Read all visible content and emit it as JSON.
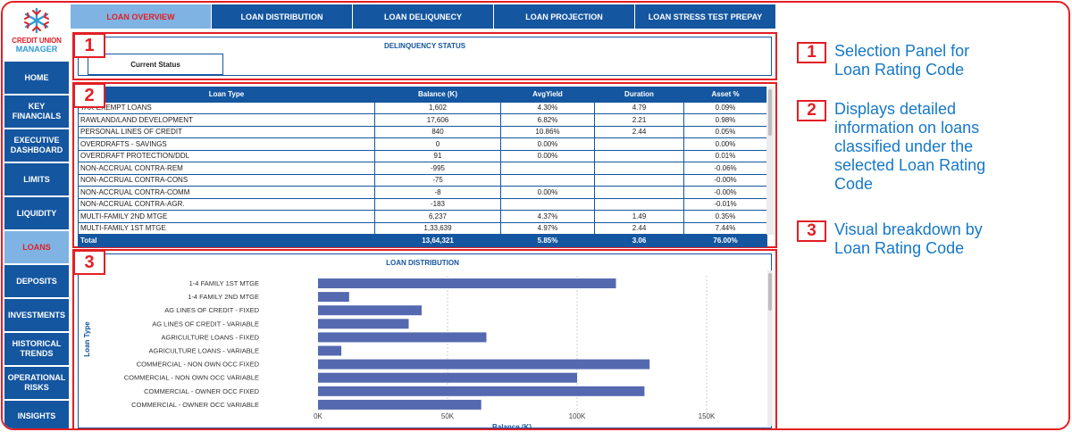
{
  "brand": {
    "line1": "CREDIT UNION",
    "line2": "MANAGER"
  },
  "sidebar": {
    "items": [
      {
        "label": "HOME",
        "active": false
      },
      {
        "label": "KEY FINANCIALS",
        "active": false
      },
      {
        "label": "EXECUTIVE DASHBOARD",
        "active": false
      },
      {
        "label": "LIMITS",
        "active": false
      },
      {
        "label": "LIQUIDITY",
        "active": false
      },
      {
        "label": "LOANS",
        "active": true
      },
      {
        "label": "DEPOSITS",
        "active": false
      },
      {
        "label": "INVESTMENTS",
        "active": false
      },
      {
        "label": "HISTORICAL TRENDS",
        "active": false
      },
      {
        "label": "OPERATIONAL RISKS",
        "active": false
      },
      {
        "label": "INSIGHTS",
        "active": false
      }
    ]
  },
  "tabs": [
    {
      "label": "LOAN OVERVIEW",
      "active": true
    },
    {
      "label": "LOAN DISTRIBUTION",
      "active": false
    },
    {
      "label": "LOAN DELIQUNECY",
      "active": false
    },
    {
      "label": "LOAN PROJECTION",
      "active": false
    },
    {
      "label": "LOAN STRESS TEST PREPAY",
      "active": false
    }
  ],
  "panel1": {
    "badge": "1",
    "title": "DELINQUENCY STATUS",
    "status_label": "Current Status"
  },
  "panel2": {
    "badge": "2",
    "columns": [
      "Loan Type",
      "Balance (K)",
      "AvgYield",
      "Duration",
      "Asset %"
    ],
    "rows": [
      [
        "TAX-EXEMPT LOANS",
        "1,602",
        "4.30%",
        "4.79",
        "0.09%"
      ],
      [
        "RAWLAND/LAND DEVELOPMENT",
        "17,606",
        "6.82%",
        "2.21",
        "0.98%"
      ],
      [
        "PERSONAL LINES OF CREDIT",
        "840",
        "10.86%",
        "2.44",
        "0.05%"
      ],
      [
        "OVERDRAFTS - SAVINGS",
        "0",
        "0.00%",
        "",
        "0.00%"
      ],
      [
        "OVERDRAFT PROTECTION/DDL",
        "91",
        "0.00%",
        "",
        "0.01%"
      ],
      [
        "NON-ACCRUAL CONTRA-REM",
        "-995",
        "",
        "",
        "-0.06%"
      ],
      [
        "NON-ACCRUAL CONTRA-CONS",
        "-75",
        "",
        "",
        "-0.00%"
      ],
      [
        "NON-ACCRUAL CONTRA-COMM",
        "-8",
        "0.00%",
        "",
        "-0.00%"
      ],
      [
        "NON-ACCRUAL CONTRA-AGR.",
        "-183",
        "",
        "",
        "-0.01%"
      ],
      [
        "MULTI-FAMILY 2ND MTGE",
        "6,237",
        "4.37%",
        "1.49",
        "0.35%"
      ],
      [
        "MULTI-FAMILY 1ST MTGE",
        "1,33,639",
        "4.97%",
        "2.44",
        "7.44%"
      ]
    ],
    "total": [
      "Total",
      "13,64,321",
      "5.85%",
      "3.06",
      "76.00%"
    ]
  },
  "panel3": {
    "badge": "3",
    "chart_data": {
      "type": "bar",
      "orientation": "horizontal",
      "title": "LOAN DISTRIBUTION",
      "xlabel": "Balance (K)",
      "ylabel": "Loan Type",
      "categories": [
        "1-4 FAMILY 1ST MTGE",
        "1-4 FAMILY 2ND MTGE",
        "AG LINES OF CREDIT - FIXED",
        "AG LINES OF CREDIT - VARIABLE",
        "AGRICULTURE LOANS - FIXED",
        "AGRICULTURE LOANS - VARIABLE",
        "COMMERCIAL - NON OWN OCC FIXED",
        "COMMERCIAL - NON OWN OCC VARIABLE",
        "COMMERCIAL - OWNER OCC FIXED",
        "COMMERCIAL - OWNER OCC VARIABLE"
      ],
      "values": [
        115000,
        12000,
        40000,
        35000,
        65000,
        9000,
        128000,
        100000,
        126000,
        63000
      ],
      "xlim": [
        0,
        160000
      ],
      "xticks": [
        0,
        50000,
        100000,
        150000
      ],
      "xtick_labels": [
        "0K",
        "50K",
        "100K",
        "150K"
      ],
      "bar_color": "#5569b0",
      "grid": true
    }
  },
  "notes": [
    {
      "num": "1",
      "text": "Selection Panel for Loan Rating Code"
    },
    {
      "num": "2",
      "text": "Displays detailed information on loans classified under the selected Loan Rating Code"
    },
    {
      "num": "3",
      "text": "Visual breakdown by Loan Rating Code"
    }
  ],
  "colors": {
    "accent": "#e31e24",
    "primary": "#1456a0",
    "active_bg": "#7fb3e3",
    "note_text": "#1678c8"
  }
}
